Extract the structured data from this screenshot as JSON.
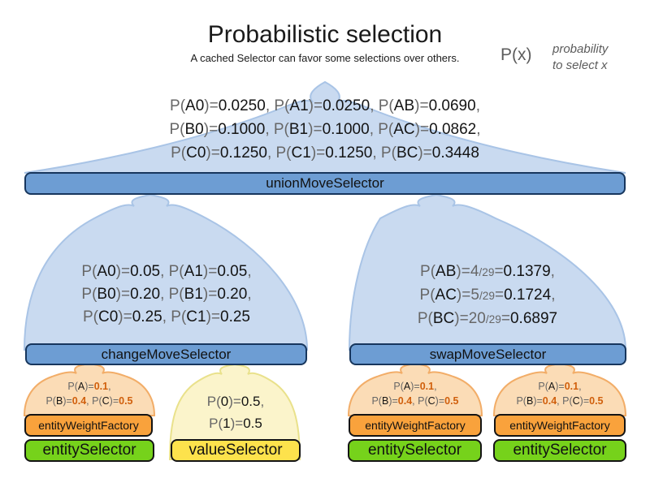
{
  "header": {
    "title": "Probabilistic selection",
    "subtitle": "A cached Selector can favor some selections over others."
  },
  "annotation": {
    "symbol": "P(x)",
    "note_line1": "probability",
    "note_line2": "to select x"
  },
  "union": {
    "bar": "unionMoveSelector",
    "lines": [
      [
        {
          "t": "P(",
          "s": "g"
        },
        {
          "t": "A0",
          "s": "k"
        },
        {
          "t": ")=",
          "s": "g"
        },
        {
          "t": "0.0250",
          "s": "k"
        },
        {
          "t": ", P(",
          "s": "g"
        },
        {
          "t": "A1",
          "s": "k"
        },
        {
          "t": ")=",
          "s": "g"
        },
        {
          "t": "0.0250",
          "s": "k"
        },
        {
          "t": ", P(",
          "s": "g"
        },
        {
          "t": "AB",
          "s": "k"
        },
        {
          "t": ")=",
          "s": "g"
        },
        {
          "t": "0.0690",
          "s": "k"
        },
        {
          "t": ",",
          "s": "g"
        }
      ],
      [
        {
          "t": "P(",
          "s": "g"
        },
        {
          "t": "B0",
          "s": "k"
        },
        {
          "t": ")=",
          "s": "g"
        },
        {
          "t": "0.1000",
          "s": "k"
        },
        {
          "t": ", P(",
          "s": "g"
        },
        {
          "t": "B1",
          "s": "k"
        },
        {
          "t": ")=",
          "s": "g"
        },
        {
          "t": "0.1000",
          "s": "k"
        },
        {
          "t": ", P(",
          "s": "g"
        },
        {
          "t": "AC",
          "s": "k"
        },
        {
          "t": ")=",
          "s": "g"
        },
        {
          "t": "0.0862",
          "s": "k"
        },
        {
          "t": ",",
          "s": "g"
        }
      ],
      [
        {
          "t": "P(",
          "s": "g"
        },
        {
          "t": "C0",
          "s": "k"
        },
        {
          "t": ")=",
          "s": "g"
        },
        {
          "t": "0.1250",
          "s": "k"
        },
        {
          "t": ", P(",
          "s": "g"
        },
        {
          "t": "C1",
          "s": "k"
        },
        {
          "t": ")=",
          "s": "g"
        },
        {
          "t": "0.1250",
          "s": "k"
        },
        {
          "t": ", P(",
          "s": "g"
        },
        {
          "t": "BC",
          "s": "k"
        },
        {
          "t": ")=",
          "s": "g"
        },
        {
          "t": "0.3448",
          "s": "k"
        }
      ]
    ]
  },
  "change": {
    "bar": "changeMoveSelector",
    "lines": [
      [
        {
          "t": "P(",
          "s": "g"
        },
        {
          "t": "A0",
          "s": "k"
        },
        {
          "t": ")=",
          "s": "g"
        },
        {
          "t": "0.05",
          "s": "k"
        },
        {
          "t": ", P(",
          "s": "g"
        },
        {
          "t": "A1",
          "s": "k"
        },
        {
          "t": ")=",
          "s": "g"
        },
        {
          "t": "0.05",
          "s": "k"
        },
        {
          "t": ",",
          "s": "g"
        }
      ],
      [
        {
          "t": "P(",
          "s": "g"
        },
        {
          "t": "B0",
          "s": "k"
        },
        {
          "t": ")=",
          "s": "g"
        },
        {
          "t": "0.20",
          "s": "k"
        },
        {
          "t": ", P(",
          "s": "g"
        },
        {
          "t": "B1",
          "s": "k"
        },
        {
          "t": ")=",
          "s": "g"
        },
        {
          "t": "0.20",
          "s": "k"
        },
        {
          "t": ",",
          "s": "g"
        }
      ],
      [
        {
          "t": "P(",
          "s": "g"
        },
        {
          "t": "C0",
          "s": "k"
        },
        {
          "t": ")=",
          "s": "g"
        },
        {
          "t": "0.25",
          "s": "k"
        },
        {
          "t": ", P(",
          "s": "g"
        },
        {
          "t": "C1",
          "s": "k"
        },
        {
          "t": ")=",
          "s": "g"
        },
        {
          "t": "0.25",
          "s": "k"
        }
      ]
    ]
  },
  "swap": {
    "bar": "swapMoveSelector",
    "lines": [
      [
        {
          "t": "P(",
          "s": "g"
        },
        {
          "t": "AB",
          "s": "k"
        },
        {
          "t": ")=",
          "s": "g"
        },
        {
          "t": "4",
          "s": "g"
        },
        {
          "t": "/29",
          "s": "f"
        },
        {
          "t": "=",
          "s": "g"
        },
        {
          "t": "0.1379",
          "s": "k"
        },
        {
          "t": ",",
          "s": "g"
        }
      ],
      [
        {
          "t": "P(",
          "s": "g"
        },
        {
          "t": "AC",
          "s": "k"
        },
        {
          "t": ")=",
          "s": "g"
        },
        {
          "t": "5",
          "s": "g"
        },
        {
          "t": "/29",
          "s": "f"
        },
        {
          "t": "=",
          "s": "g"
        },
        {
          "t": "0.1724",
          "s": "k"
        },
        {
          "t": ",",
          "s": "g"
        }
      ],
      [
        {
          "t": "P(",
          "s": "g"
        },
        {
          "t": "BC",
          "s": "k"
        },
        {
          "t": ")=",
          "s": "g"
        },
        {
          "t": "20",
          "s": "g"
        },
        {
          "t": "/29",
          "s": "f"
        },
        {
          "t": "=",
          "s": "g"
        },
        {
          "t": "0.6897",
          "s": "k"
        }
      ]
    ]
  },
  "entity_weight": {
    "bar": "entityWeightFactory",
    "lines": [
      [
        {
          "t": "P(",
          "s": "g"
        },
        {
          "t": "A",
          "s": "k"
        },
        {
          "t": ")=",
          "s": "g"
        },
        {
          "t": "0.1",
          "s": "o"
        },
        {
          "t": ",",
          "s": "g"
        }
      ],
      [
        {
          "t": "P(",
          "s": "g"
        },
        {
          "t": "B",
          "s": "k"
        },
        {
          "t": ")=",
          "s": "g"
        },
        {
          "t": "0.4",
          "s": "o"
        },
        {
          "t": ", P(",
          "s": "g"
        },
        {
          "t": "C",
          "s": "k"
        },
        {
          "t": ")=",
          "s": "g"
        },
        {
          "t": "0.5",
          "s": "o"
        }
      ]
    ]
  },
  "entity": {
    "bar": "entitySelector"
  },
  "value": {
    "bar": "valueSelector",
    "lines": [
      [
        {
          "t": "P(",
          "s": "g"
        },
        {
          "t": "0",
          "s": "k"
        },
        {
          "t": ")=",
          "s": "g"
        },
        {
          "t": "0.5",
          "s": "k"
        },
        {
          "t": ",",
          "s": "g"
        }
      ],
      [
        {
          "t": "P(",
          "s": "g"
        },
        {
          "t": "1",
          "s": "k"
        },
        {
          "t": ")=",
          "s": "g"
        },
        {
          "t": "0.5",
          "s": "k"
        }
      ]
    ]
  },
  "colors": {
    "funnel_blue": "#c9daf0",
    "funnel_blue_stroke": "#a9c4e6",
    "bar_blue": "#6d9dd3",
    "bar_orange": "#f9a23c",
    "bar_green": "#76d21b",
    "bar_yellow": "#fde24c",
    "funnel_orange": "#fbdcb6",
    "funnel_orange_stroke": "#f2ad68",
    "funnel_yellow": "#fbf4cb",
    "funnel_yellow_stroke": "#e9e18b",
    "highlight_orange_text": "#d05f0c",
    "gray_text": "#676767"
  }
}
